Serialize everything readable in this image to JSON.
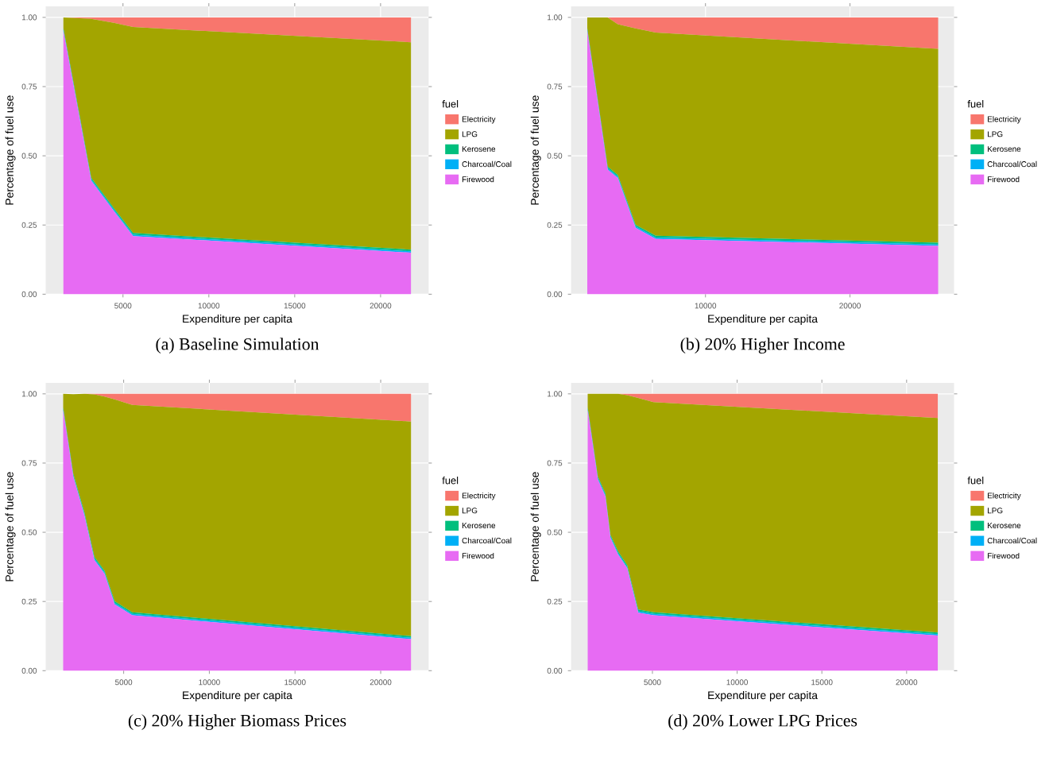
{
  "chart_data": [
    {
      "type": "area",
      "title": "(a) Baseline Simulation",
      "xlabel": "Expenditure per capita",
      "ylabel": "Percentage of fuel use",
      "legend_title": "fuel",
      "stacked": true,
      "grid": true,
      "legend": "right",
      "x": [
        1530,
        3150,
        4470,
        5590,
        21770
      ],
      "xlim": [
        500,
        22800
      ],
      "xticks": [
        5000,
        10000,
        15000,
        20000
      ],
      "ylim": [
        0,
        1.04
      ],
      "yticks": [
        {
          "value": 0,
          "label": "0.00"
        },
        {
          "value": 0.25,
          "label": "0.25"
        },
        {
          "value": 0.5,
          "label": "0.50"
        },
        {
          "value": 0.75,
          "label": "0.75"
        },
        {
          "value": 1,
          "label": "1.00"
        }
      ],
      "series": [
        {
          "name": "Firewood",
          "color": "#e76bf3",
          "values": [
            0.95,
            0.41,
            0.3,
            0.21,
            0.15
          ]
        },
        {
          "name": "Charcoal/Coal",
          "color": "#00b0f6",
          "values": [
            0.005,
            0.005,
            0.005,
            0.005,
            0.005
          ]
        },
        {
          "name": "Kerosene",
          "color": "#00bf7d",
          "values": [
            0.006,
            0.006,
            0.006,
            0.006,
            0.006
          ]
        },
        {
          "name": "LPG",
          "color": "#a3a500",
          "values": [
            0.039,
            0.574,
            0.669,
            0.744,
            0.749
          ]
        },
        {
          "name": "Electricity",
          "color": "#f8766d",
          "values": [
            0,
            0.005,
            0.02,
            0.035,
            0.09
          ]
        }
      ]
    },
    {
      "type": "area",
      "title": "(b) 20% Higher Income",
      "xlabel": "Expenditure per capita",
      "ylabel": "Percentage of fuel use",
      "legend_title": "fuel",
      "stacked": true,
      "grid": true,
      "legend": "right",
      "x": [
        1820,
        3230,
        3930,
        5160,
        6560,
        26100
      ],
      "xlim": [
        700,
        27200
      ],
      "xticks": [
        10000,
        20000
      ],
      "ylim": [
        0,
        1.04
      ],
      "yticks": [
        {
          "value": 0,
          "label": "0.00"
        },
        {
          "value": 0.25,
          "label": "0.25"
        },
        {
          "value": 0.5,
          "label": "0.50"
        },
        {
          "value": 0.75,
          "label": "0.75"
        },
        {
          "value": 1,
          "label": "1.00"
        }
      ],
      "series": [
        {
          "name": "Firewood",
          "color": "#e76bf3",
          "values": [
            0.95,
            0.45,
            0.42,
            0.24,
            0.2,
            0.175
          ]
        },
        {
          "name": "Charcoal/Coal",
          "color": "#00b0f6",
          "values": [
            0.005,
            0.005,
            0.005,
            0.005,
            0.005,
            0.005
          ]
        },
        {
          "name": "Kerosene",
          "color": "#00bf7d",
          "values": [
            0.006,
            0.006,
            0.006,
            0.006,
            0.006,
            0.006
          ]
        },
        {
          "name": "LPG",
          "color": "#a3a500",
          "values": [
            0.039,
            0.539,
            0.544,
            0.709,
            0.734,
            0.7
          ]
        },
        {
          "name": "Electricity",
          "color": "#f8766d",
          "values": [
            0,
            0,
            0.025,
            0.04,
            0.055,
            0.114
          ]
        }
      ]
    },
    {
      "type": "area",
      "title": "(c) 20% Higher Biomass Prices",
      "xlabel": "Expenditure per capita",
      "ylabel": "Percentage of fuel use",
      "legend_title": "fuel",
      "stacked": true,
      "grid": true,
      "legend": "right",
      "x": [
        1470,
        2060,
        2710,
        3290,
        3880,
        4470,
        5500,
        21770
      ],
      "xlim": [
        450,
        22800
      ],
      "xticks": [
        5000,
        10000,
        15000,
        20000
      ],
      "ylim": [
        0,
        1.04
      ],
      "yticks": [
        {
          "value": 0,
          "label": "0.00"
        },
        {
          "value": 0.25,
          "label": "0.25"
        },
        {
          "value": 0.5,
          "label": "0.50"
        },
        {
          "value": 0.75,
          "label": "0.75"
        },
        {
          "value": 1,
          "label": "1.00"
        }
      ],
      "series": [
        {
          "name": "Firewood",
          "color": "#e76bf3",
          "values": [
            0.94,
            0.7,
            0.56,
            0.4,
            0.35,
            0.24,
            0.2,
            0.114
          ]
        },
        {
          "name": "Charcoal/Coal",
          "color": "#00b0f6",
          "values": [
            0.005,
            0.005,
            0.005,
            0.005,
            0.005,
            0.005,
            0.005,
            0.005
          ]
        },
        {
          "name": "Kerosene",
          "color": "#00bf7d",
          "values": [
            0.006,
            0.006,
            0.006,
            0.006,
            0.006,
            0.006,
            0.006,
            0.006
          ]
        },
        {
          "name": "LPG",
          "color": "#a3a500",
          "values": [
            0.049,
            0.288,
            0.429,
            0.587,
            0.629,
            0.729,
            0.749,
            0.775
          ]
        },
        {
          "name": "Electricity",
          "color": "#f8766d",
          "values": [
            0,
            0,
            0,
            0.002,
            0.01,
            0.02,
            0.04,
            0.1
          ]
        }
      ]
    },
    {
      "type": "area",
      "title": "(d) 20% Lower LPG Prices",
      "xlabel": "Expenditure per capita",
      "ylabel": "Percentage of fuel use",
      "legend_title": "fuel",
      "stacked": true,
      "grid": true,
      "legend": "right",
      "x": [
        1180,
        1780,
        2220,
        2520,
        2970,
        3510,
        4160,
        5060,
        21840
      ],
      "xlim": [
        200,
        22800
      ],
      "xticks": [
        5000,
        10000,
        15000,
        20000
      ],
      "ylim": [
        0,
        1.04
      ],
      "yticks": [
        {
          "value": 0,
          "label": "0.00"
        },
        {
          "value": 0.25,
          "label": "0.25"
        },
        {
          "value": 0.5,
          "label": "0.50"
        },
        {
          "value": 0.75,
          "label": "0.75"
        },
        {
          "value": 1,
          "label": "1.00"
        }
      ],
      "series": [
        {
          "name": "Firewood",
          "color": "#e76bf3",
          "values": [
            0.94,
            0.69,
            0.63,
            0.48,
            0.42,
            0.37,
            0.21,
            0.2,
            0.127
          ]
        },
        {
          "name": "Charcoal/Coal",
          "color": "#00b0f6",
          "values": [
            0.005,
            0.005,
            0.005,
            0.005,
            0.005,
            0.005,
            0.005,
            0.005,
            0.005
          ]
        },
        {
          "name": "Kerosene",
          "color": "#00bf7d",
          "values": [
            0.006,
            0.006,
            0.006,
            0.006,
            0.006,
            0.006,
            0.006,
            0.006,
            0.006
          ]
        },
        {
          "name": "LPG",
          "color": "#a3a500",
          "values": [
            0.049,
            0.299,
            0.359,
            0.509,
            0.569,
            0.614,
            0.764,
            0.759,
            0.775
          ]
        },
        {
          "name": "Electricity",
          "color": "#f8766d",
          "values": [
            0,
            0,
            0,
            0,
            0,
            0.005,
            0.015,
            0.03,
            0.087
          ]
        }
      ]
    }
  ]
}
